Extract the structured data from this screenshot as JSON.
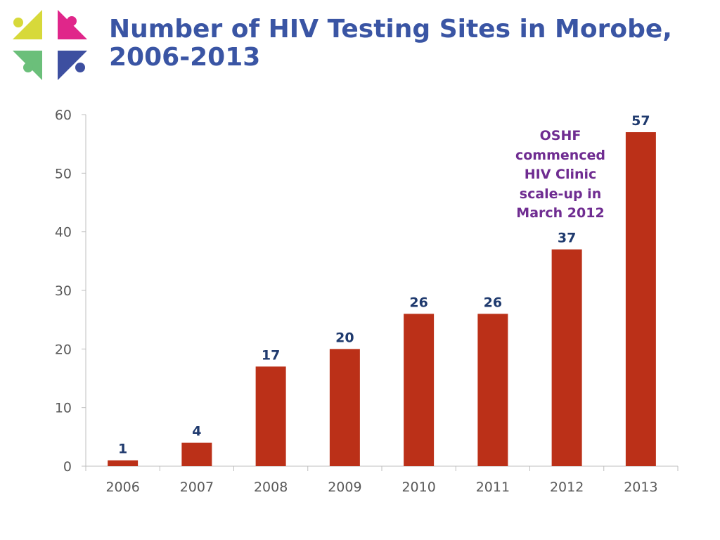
{
  "slide": {
    "title_line1": "Number of HIV Testing Sites in Morobe,",
    "title_line2": "2006-2013",
    "logo_icon": "organization-cross-logo-icon"
  },
  "colors": {
    "title": "#3A55A4",
    "bar": "#BB3018",
    "data_label": "#1F3A6E",
    "annotation": "#6F2C91",
    "axis": "#BFBFBF",
    "tick_label": "#595959",
    "logo_yellow": "#D7D93A",
    "logo_magenta": "#E0268A",
    "logo_green": "#6BBF7A",
    "logo_blue": "#3D4FA0"
  },
  "chart_data": {
    "type": "bar",
    "title": "",
    "xlabel": "",
    "ylabel": "",
    "categories": [
      "2006",
      "2007",
      "2008",
      "2009",
      "2010",
      "2011",
      "2012",
      "2013"
    ],
    "values": [
      1,
      4,
      17,
      20,
      26,
      26,
      37,
      57
    ],
    "ylim": [
      0,
      60
    ],
    "yticks": [
      0,
      10,
      20,
      30,
      40,
      50,
      60
    ],
    "grid": false,
    "legend": "none",
    "data_labels": true,
    "annotation": {
      "lines": [
        "OSHF",
        "commenced",
        "HIV Clinic",
        "scale-up in",
        "March 2012"
      ],
      "near_category": "2012"
    }
  }
}
